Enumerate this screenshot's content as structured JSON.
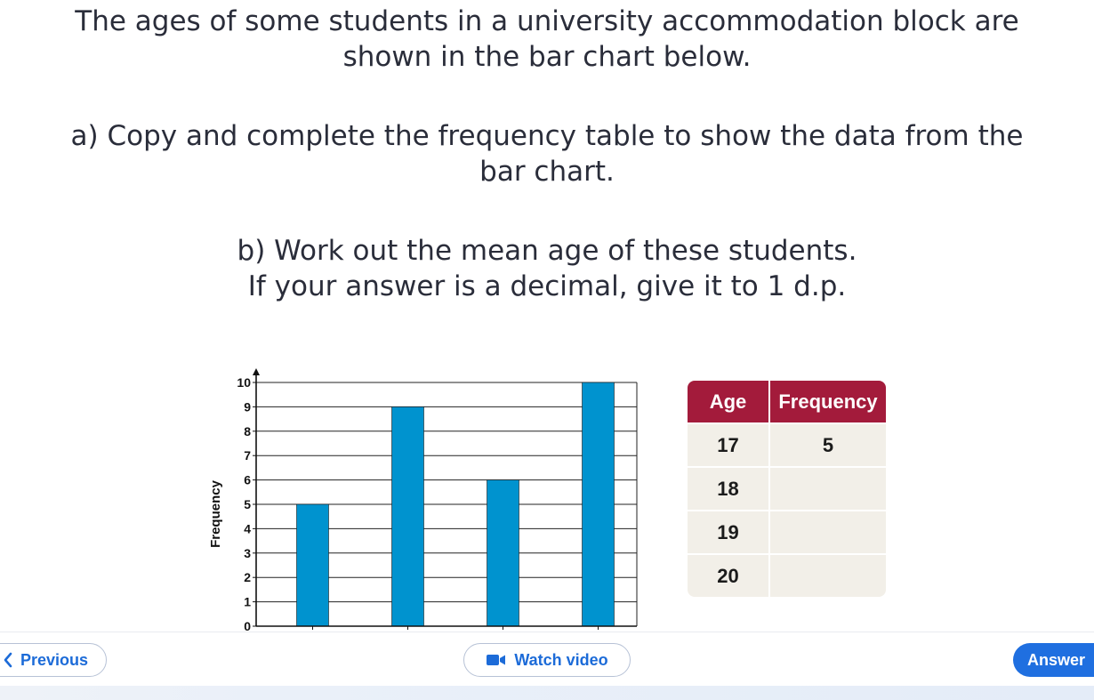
{
  "question": {
    "line1": "The ages of some students in a university accommodation block are",
    "line2": "shown in the bar chart below.",
    "part_a_line1": "a) Copy and complete the frequency table to show the data from the",
    "part_a_line2": "bar chart.",
    "part_b_line1": "b) Work out the mean age of these students.",
    "part_b_line2": "If your answer is a decimal, give it to 1 d.p."
  },
  "chart_data": {
    "type": "bar",
    "categories": [
      "",
      "",
      "",
      ""
    ],
    "values": [
      5,
      9,
      6,
      10
    ],
    "ylabel": "Frequency",
    "xlabel": "",
    "ylim": [
      0,
      10
    ],
    "yticks": [
      "0",
      "1",
      "2",
      "3",
      "4",
      "5",
      "6",
      "7",
      "8",
      "9",
      "10"
    ],
    "grid": true,
    "bar_color": "#0093cf"
  },
  "table": {
    "headers": [
      "Age",
      "Frequency"
    ],
    "rows": [
      {
        "age": "17",
        "frequency": "5"
      },
      {
        "age": "18",
        "frequency": ""
      },
      {
        "age": "19",
        "frequency": ""
      },
      {
        "age": "20",
        "frequency": ""
      }
    ],
    "header_color": "#a31b3b"
  },
  "footer": {
    "previous_label": "Previous",
    "watch_video_label": "Watch video",
    "answer_label": "Answer"
  },
  "icons": {
    "previous": "chevron-left-icon",
    "video": "video-camera-icon"
  },
  "colors": {
    "accent": "#1c6bd8",
    "answer_bg": "#1f6fe0"
  }
}
